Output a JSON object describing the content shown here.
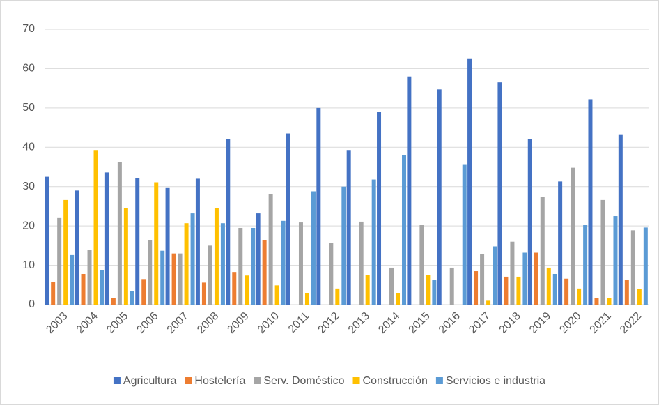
{
  "chart_data": {
    "type": "bar",
    "categories": [
      "2003",
      "2004",
      "2005",
      "2006",
      "2007",
      "2008",
      "2009",
      "2010",
      "2011",
      "2012",
      "2013",
      "2014",
      "2015",
      "2016",
      "2017",
      "2018",
      "2019",
      "2020",
      "2021",
      "2022"
    ],
    "series": [
      {
        "name": "Agricultura",
        "color": "#4472c4",
        "values": [
          32.5,
          29,
          33.6,
          32.2,
          29.8,
          32,
          42,
          23.2,
          43.5,
          50,
          39.3,
          49,
          58,
          54.7,
          62.6,
          56.5,
          42,
          31.3,
          52.2,
          43.3
        ]
      },
      {
        "name": "Hostelería",
        "color": "#ed7d31",
        "values": [
          5.8,
          7.8,
          1.6,
          6.5,
          13,
          5.6,
          8.3,
          16.4,
          0,
          0,
          0,
          0,
          0,
          0,
          8.5,
          7.1,
          13.2,
          6.6,
          1.6,
          6.2
        ]
      },
      {
        "name": "Serv. Doméstico",
        "color": "#a5a5a5",
        "values": [
          22,
          13.9,
          36.3,
          16.4,
          13,
          15,
          19.5,
          28,
          20.9,
          15.7,
          21.1,
          9.4,
          20.2,
          9.4,
          12.8,
          16,
          27.3,
          34.8,
          26.6,
          18.9
        ]
      },
      {
        "name": "Construcción",
        "color": "#ffc000",
        "values": [
          26.6,
          39.3,
          24.5,
          31.1,
          20.7,
          24.5,
          7.4,
          4.9,
          3,
          4.1,
          7.6,
          3,
          7.6,
          0,
          1,
          7.1,
          9.4,
          4.1,
          1.6,
          3.9
        ]
      },
      {
        "name": "Servicios e industria",
        "color": "#5b9bd5",
        "values": [
          12.6,
          8.7,
          3.5,
          13.7,
          23.2,
          20.7,
          19.5,
          21.3,
          28.8,
          30,
          31.8,
          38,
          6.2,
          35.7,
          14.8,
          13.2,
          7.8,
          20.2,
          22.5,
          19.6
        ]
      }
    ],
    "ylim": [
      0,
      70
    ],
    "yticks": [
      0,
      10,
      20,
      30,
      40,
      50,
      60,
      70
    ],
    "grid": true,
    "legend": "bottom"
  }
}
